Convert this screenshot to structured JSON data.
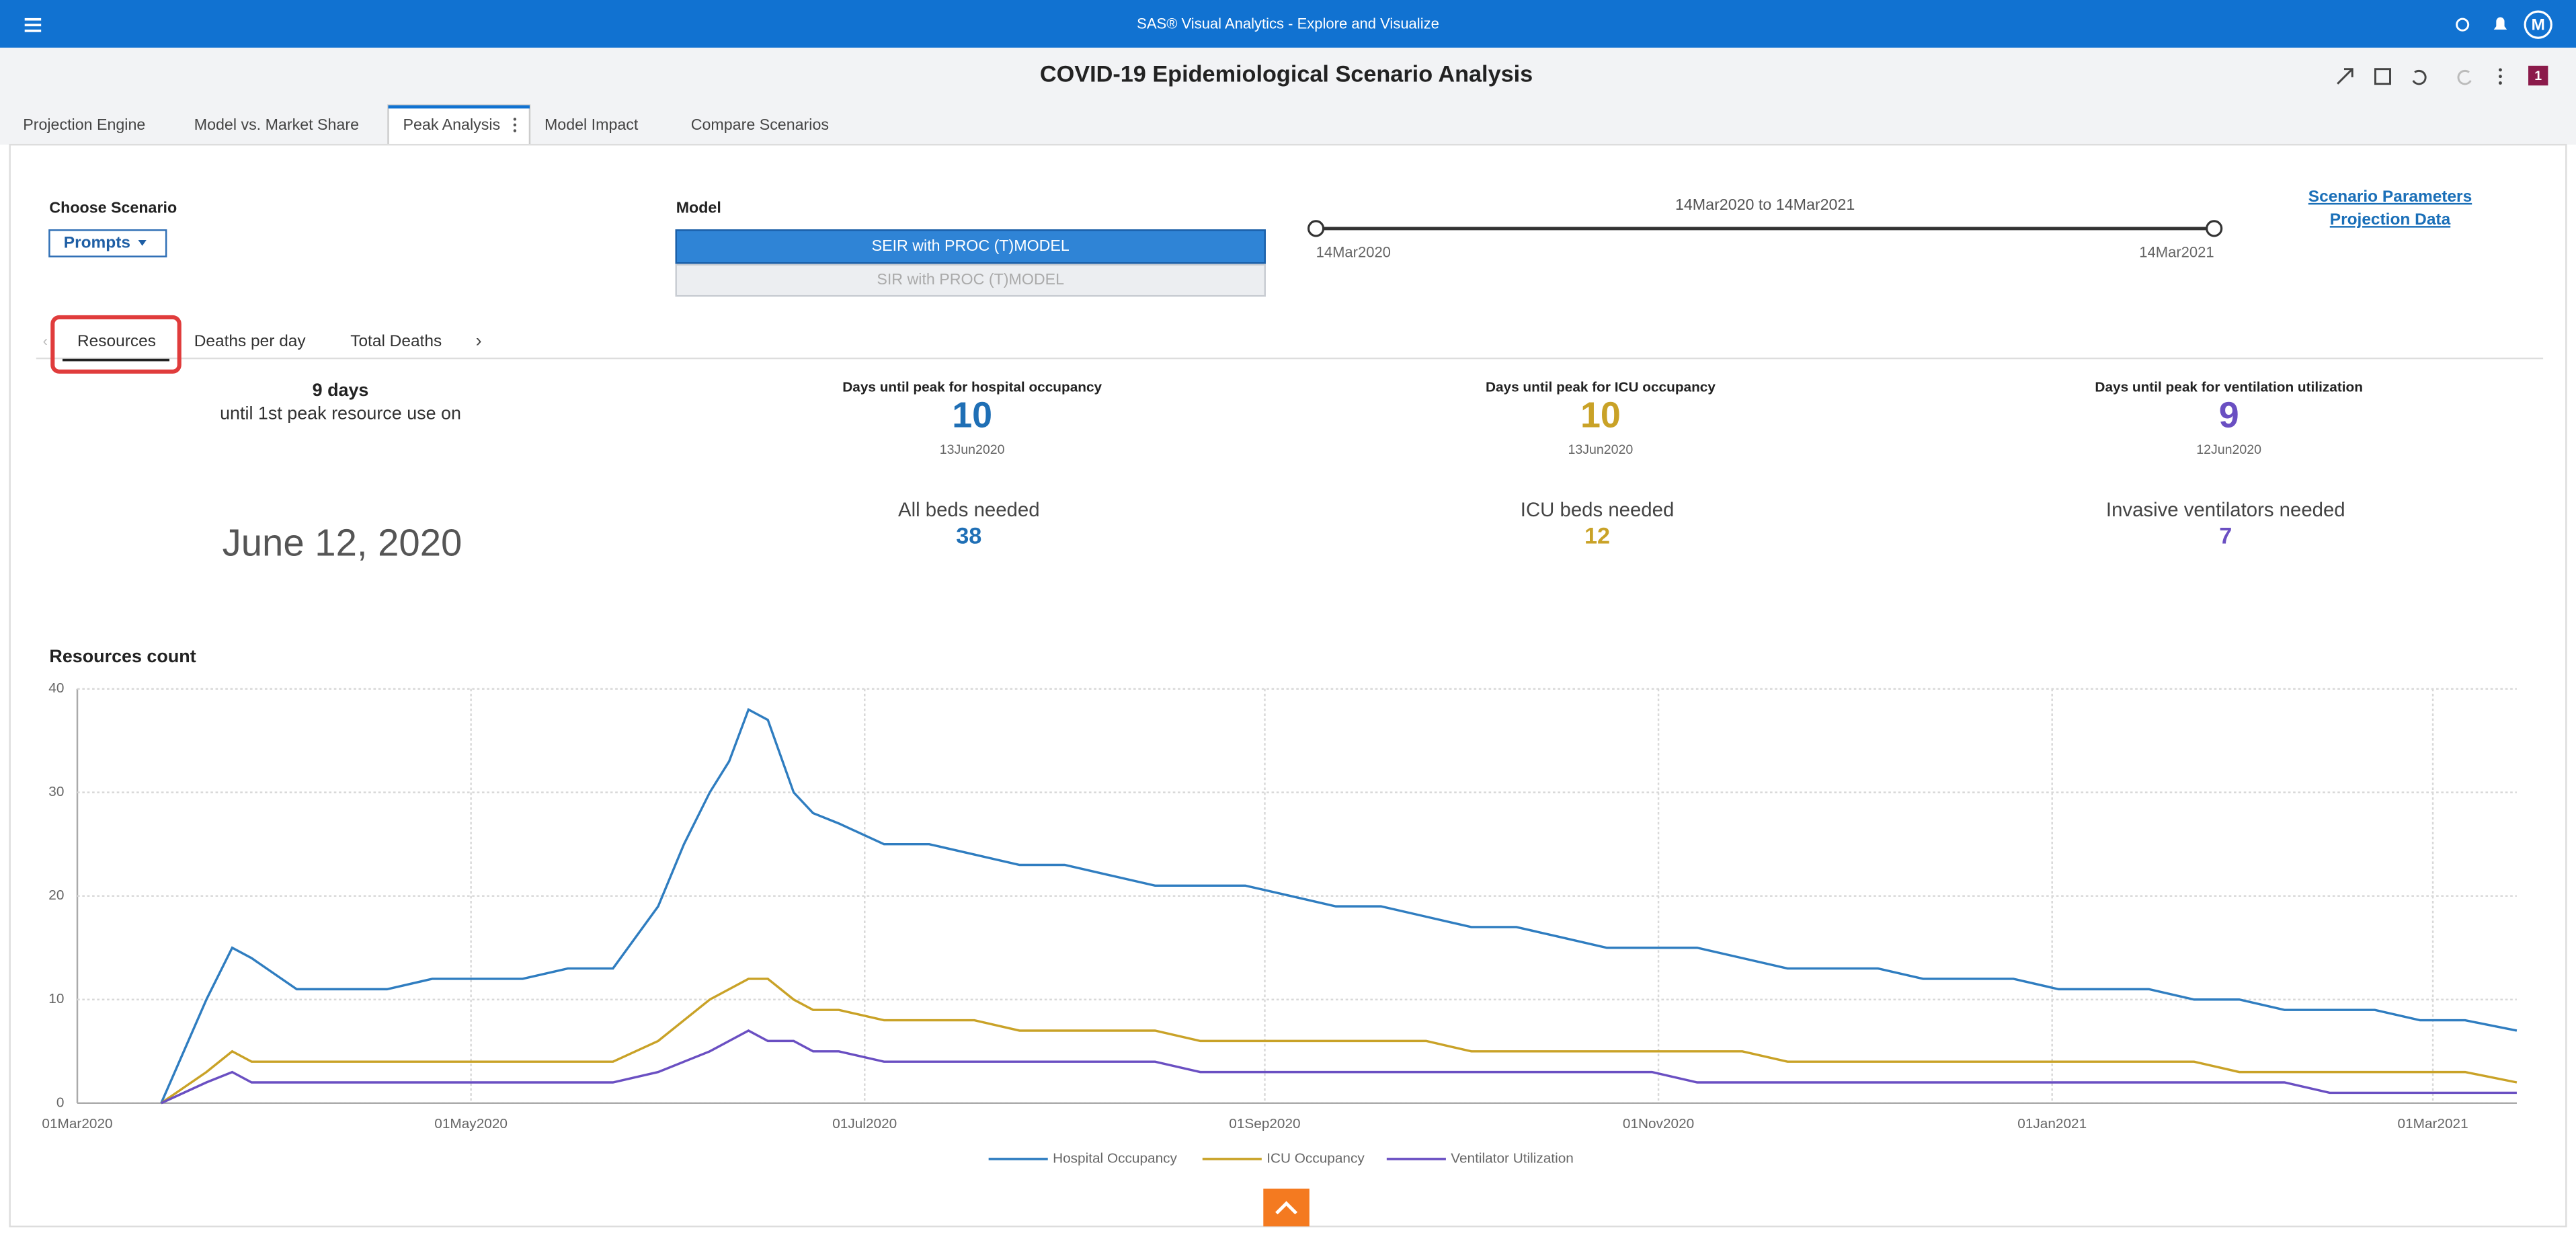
{
  "header": {
    "app_title": "SAS® Visual Analytics - Explore and Visualize",
    "user_initial": "M",
    "report_title": "COVID-19 Epidemiological Scenario Analysis",
    "badge": "1"
  },
  "page_tabs": [
    "Projection Engine",
    "Model vs. Market Share",
    "Peak Analysis",
    "Model Impact",
    "Compare Scenarios"
  ],
  "controls": {
    "scenario_label": "Choose Scenario",
    "scenario_button": "Prompts",
    "model_label": "Model",
    "models": [
      "SEIR with PROC (T)MODEL",
      "SIR with PROC (T)MODEL"
    ],
    "range_label": "14Mar2020 to 14Mar2021",
    "range_start": "14Mar2020",
    "range_end": "14Mar2021",
    "links": [
      "Scenario Parameters",
      "Projection Data"
    ]
  },
  "sub_tabs": [
    "Resources",
    "Deaths per day",
    "Total Deaths"
  ],
  "summary": {
    "days": "9 days",
    "caption": "until 1st peak resource use on",
    "date": "June 12, 2020"
  },
  "kpis": [
    {
      "label": "Days until peak for hospital occupancy",
      "value": 10,
      "date": "13Jun2020",
      "need_label": "All beds needed",
      "need": 38,
      "color": "#1f6fb5"
    },
    {
      "label": "Days until peak for ICU occupancy",
      "value": 10,
      "date": "13Jun2020",
      "need_label": "ICU beds needed",
      "need": 12,
      "color": "#c9a227"
    },
    {
      "label": "Days until peak for ventilation utilization",
      "value": 9,
      "date": "12Jun2020",
      "need_label": "Invasive ventilators needed",
      "need": 7,
      "color": "#6a4fc2"
    }
  ],
  "chart_data": {
    "type": "line",
    "title": "Resources count",
    "x": [
      "14Mar2020",
      "21Mar2020",
      "25Mar2020",
      "28Mar2020",
      "04Apr2020",
      "11Apr2020",
      "18Apr2020",
      "25Apr2020",
      "02May2020",
      "09May2020",
      "16May2020",
      "23May2020",
      "30May2020",
      "03Jun2020",
      "07Jun2020",
      "10Jun2020",
      "13Jun2020",
      "16Jun2020",
      "20Jun2020",
      "23Jun2020",
      "27Jun2020",
      "04Jul2020",
      "11Jul2020",
      "18Jul2020",
      "25Jul2020",
      "01Aug2020",
      "08Aug2020",
      "15Aug2020",
      "22Aug2020",
      "29Aug2020",
      "05Sep2020",
      "12Sep2020",
      "19Sep2020",
      "26Sep2020",
      "03Oct2020",
      "10Oct2020",
      "17Oct2020",
      "24Oct2020",
      "31Oct2020",
      "07Nov2020",
      "14Nov2020",
      "21Nov2020",
      "28Nov2020",
      "05Dec2020",
      "12Dec2020",
      "19Dec2020",
      "26Dec2020",
      "02Jan2021",
      "09Jan2021",
      "16Jan2021",
      "23Jan2021",
      "30Jan2021",
      "06Feb2021",
      "13Feb2021",
      "20Feb2021",
      "27Feb2021",
      "06Mar2021",
      "14Mar2021"
    ],
    "series": [
      {
        "name": "Hospital Occupancy",
        "color": "#2f7dc0",
        "values": [
          0,
          10,
          15,
          14,
          11,
          11,
          11,
          12,
          12,
          12,
          13,
          13,
          19,
          25,
          30,
          33,
          38,
          37,
          30,
          28,
          27,
          25,
          25,
          24,
          23,
          23,
          22,
          21,
          21,
          21,
          20,
          19,
          19,
          18,
          17,
          17,
          16,
          15,
          15,
          15,
          14,
          13,
          13,
          13,
          12,
          12,
          12,
          11,
          11,
          11,
          10,
          10,
          9,
          9,
          9,
          8,
          8,
          7
        ]
      },
      {
        "name": "ICU Occupancy",
        "color": "#c9a227",
        "values": [
          0,
          3,
          5,
          4,
          4,
          4,
          4,
          4,
          4,
          4,
          4,
          4,
          6,
          8,
          10,
          11,
          12,
          12,
          10,
          9,
          9,
          8,
          8,
          8,
          7,
          7,
          7,
          7,
          6,
          6,
          6,
          6,
          6,
          6,
          5,
          5,
          5,
          5,
          5,
          5,
          5,
          4,
          4,
          4,
          4,
          4,
          4,
          4,
          4,
          4,
          4,
          3,
          3,
          3,
          3,
          3,
          3,
          2
        ]
      },
      {
        "name": "Ventilator Utilization",
        "color": "#6a4fc2",
        "values": [
          0,
          2,
          3,
          2,
          2,
          2,
          2,
          2,
          2,
          2,
          2,
          2,
          3,
          4,
          5,
          6,
          7,
          6,
          6,
          5,
          5,
          4,
          4,
          4,
          4,
          4,
          4,
          4,
          3,
          3,
          3,
          3,
          3,
          3,
          3,
          3,
          3,
          3,
          3,
          2,
          2,
          2,
          2,
          2,
          2,
          2,
          2,
          2,
          2,
          2,
          2,
          2,
          2,
          1,
          1,
          1,
          1,
          1
        ]
      }
    ],
    "xlim": [
      "01Mar2020",
      "14Mar2021"
    ],
    "xticks": [
      "01Mar2020",
      "01May2020",
      "01Jul2020",
      "01Sep2020",
      "01Nov2020",
      "01Jan2021",
      "01Mar2021"
    ],
    "ylim": [
      0,
      40
    ],
    "yticks": [
      0,
      10,
      20,
      30,
      40
    ],
    "grid": true,
    "legend": "bottom"
  }
}
